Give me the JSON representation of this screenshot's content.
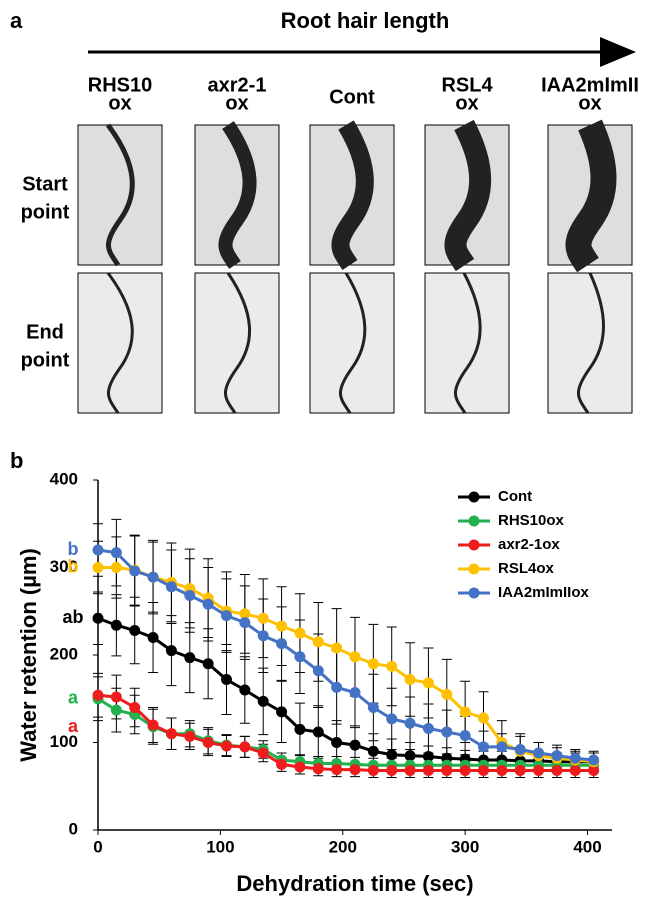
{
  "panel_a": {
    "label": "a",
    "title": "Root hair length",
    "columns": [
      [
        "RHS10",
        "ox"
      ],
      [
        "axr2-1",
        "ox"
      ],
      [
        "Cont"
      ],
      [
        "RSL4",
        "ox"
      ],
      [
        "IAA2mImII",
        "ox"
      ]
    ],
    "rows": [
      [
        "Start",
        "point"
      ],
      [
        "End",
        "point"
      ]
    ]
  },
  "chart_data": {
    "type": "line",
    "panel_label": "b",
    "x_label": "Dehydration time (sec)",
    "y_label": "Water retention (µm)",
    "x": [
      0,
      15,
      30,
      45,
      60,
      75,
      90,
      105,
      120,
      135,
      150,
      165,
      180,
      195,
      210,
      225,
      240,
      255,
      270,
      285,
      300,
      315,
      330,
      345,
      360,
      375,
      390,
      405
    ],
    "xlim": [
      0,
      420
    ],
    "xticks": [
      0,
      100,
      200,
      300,
      400
    ],
    "ylim": [
      0,
      400
    ],
    "yticks": [
      0,
      100,
      200,
      300,
      400
    ],
    "legend": "upper right",
    "series": [
      {
        "name": "Cont",
        "color": "#000000",
        "letter": "ab",
        "values": [
          242,
          234,
          228,
          220,
          205,
          197,
          190,
          172,
          160,
          147,
          135,
          115,
          112,
          100,
          97,
          90,
          86,
          85,
          84,
          82,
          81,
          80,
          80,
          79,
          79,
          78,
          78,
          78
        ],
        "errors": [
          30,
          35,
          38,
          40,
          40,
          40,
          40,
          40,
          38,
          38,
          35,
          30,
          30,
          25,
          22,
          20,
          18,
          15,
          12,
          12,
          10,
          10,
          10,
          10,
          10,
          10,
          10,
          10
        ]
      },
      {
        "name": "RHS10ox",
        "color": "#22b14c",
        "letter": "a",
        "values": [
          150,
          137,
          132,
          118,
          110,
          110,
          102,
          97,
          95,
          92,
          80,
          78,
          76,
          76,
          75,
          74,
          74,
          74,
          74,
          74,
          74,
          74,
          74,
          74,
          74,
          74,
          74,
          74
        ],
        "errors": [
          25,
          25,
          22,
          20,
          18,
          15,
          15,
          12,
          12,
          10,
          8,
          8,
          8,
          8,
          8,
          8,
          8,
          8,
          8,
          8,
          8,
          8,
          8,
          8,
          8,
          8,
          8,
          8
        ]
      },
      {
        "name": "axr2-1ox",
        "color": "#ee1c1c",
        "letter": "a",
        "values": [
          154,
          152,
          140,
          120,
          110,
          107,
          100,
          96,
          95,
          88,
          75,
          72,
          70,
          69,
          69,
          68,
          68,
          68,
          68,
          68,
          68,
          68,
          68,
          68,
          68,
          68,
          68,
          68
        ],
        "errors": [
          25,
          25,
          22,
          20,
          18,
          15,
          15,
          12,
          12,
          10,
          8,
          8,
          8,
          8,
          8,
          8,
          8,
          8,
          8,
          8,
          8,
          8,
          8,
          8,
          8,
          8,
          8,
          8
        ]
      },
      {
        "name": "RSL4ox",
        "color": "#ffc000",
        "letter": "b",
        "values": [
          300,
          300,
          297,
          289,
          283,
          276,
          265,
          250,
          247,
          242,
          233,
          225,
          215,
          208,
          198,
          190,
          187,
          172,
          168,
          155,
          135,
          128,
          100,
          90,
          85,
          82,
          80,
          78
        ],
        "errors": [
          30,
          35,
          40,
          42,
          45,
          45,
          45,
          45,
          45,
          45,
          45,
          45,
          45,
          45,
          45,
          45,
          45,
          42,
          40,
          40,
          35,
          30,
          25,
          20,
          15,
          12,
          10,
          10
        ]
      },
      {
        "name": "IAA2mImIIox",
        "color": "#4472c4",
        "letter": "b",
        "values": [
          320,
          317,
          296,
          289,
          278,
          268,
          258,
          245,
          237,
          222,
          213,
          198,
          182,
          163,
          157,
          140,
          127,
          122,
          116,
          112,
          108,
          95,
          95,
          92,
          88,
          85,
          82,
          80
        ],
        "errors": [
          30,
          38,
          40,
          40,
          42,
          42,
          42,
          42,
          42,
          42,
          42,
          42,
          42,
          42,
          40,
          38,
          35,
          30,
          28,
          25,
          22,
          18,
          15,
          15,
          12,
          12,
          10,
          10
        ]
      }
    ]
  }
}
